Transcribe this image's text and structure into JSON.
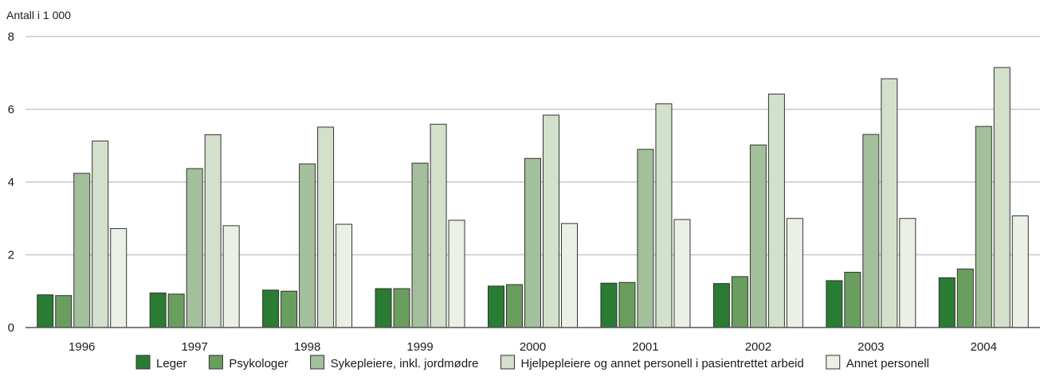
{
  "chart_data": {
    "type": "bar",
    "unit_label": "Antall i 1 000",
    "categories": [
      "1996",
      "1997",
      "1998",
      "1999",
      "2000",
      "2001",
      "2002",
      "2003",
      "2004"
    ],
    "ylim": [
      0,
      8
    ],
    "yticks": [
      "0",
      "2",
      "4",
      "6",
      "8"
    ],
    "grid": true,
    "legend_position": "bottom",
    "series": [
      {
        "name": "Leger",
        "color": "#2a7b33",
        "values": [
          0.9,
          0.95,
          1.03,
          1.07,
          1.14,
          1.22,
          1.21,
          1.29,
          1.37
        ]
      },
      {
        "name": "Psykologer",
        "color": "#6a9e5f",
        "values": [
          0.88,
          0.92,
          1.0,
          1.07,
          1.18,
          1.24,
          1.4,
          1.52,
          1.61
        ]
      },
      {
        "name": "Sykepleiere, inkl. jordmødre",
        "color": "#a3bf9b",
        "values": [
          4.24,
          4.37,
          4.5,
          4.52,
          4.65,
          4.9,
          5.02,
          5.31,
          5.53
        ]
      },
      {
        "name": "Hjelpepleiere og annet personell i pasientrettet arbeid",
        "color": "#d2e0cc",
        "values": [
          5.13,
          5.3,
          5.51,
          5.59,
          5.84,
          6.15,
          6.42,
          6.84,
          7.15
        ]
      },
      {
        "name": "Annet personell",
        "color": "#eaf0e6",
        "values": [
          2.72,
          2.8,
          2.84,
          2.95,
          2.86,
          2.97,
          3.0,
          3.0,
          3.07
        ]
      }
    ]
  }
}
